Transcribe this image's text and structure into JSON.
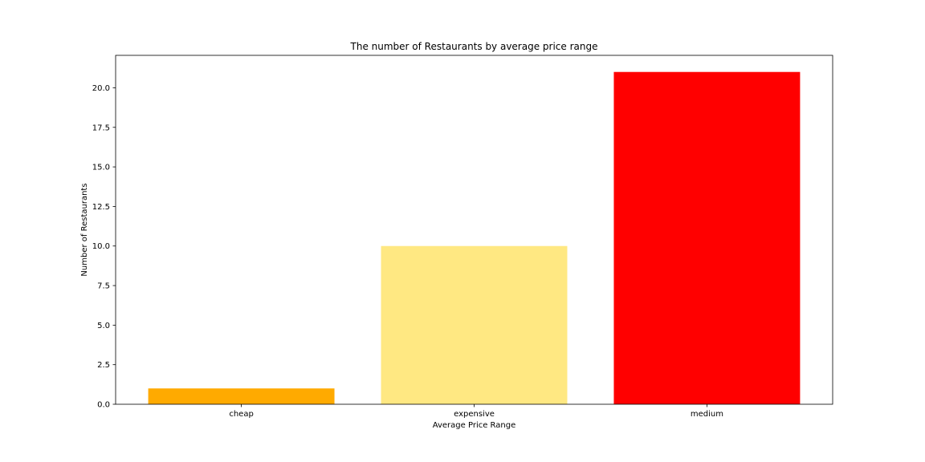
{
  "chart_data": {
    "type": "bar",
    "title": "The number of Restaurants by average price range",
    "xlabel": "Average Price Range",
    "ylabel": "Number of Restaurants",
    "categories": [
      "cheap",
      "expensive",
      "medium"
    ],
    "values": [
      1,
      10,
      21
    ],
    "colors": [
      "#ffaa00",
      "#ffe882",
      "#ff0000"
    ],
    "ylim": [
      0,
      22.05
    ],
    "yticks": [
      0,
      2.5,
      5,
      7.5,
      10,
      12.5,
      15,
      17.5,
      20
    ],
    "ytick_labels": [
      "0.0",
      "2.5",
      "5.0",
      "7.5",
      "10.0",
      "12.5",
      "15.0",
      "17.5",
      "20.0"
    ],
    "grid": false,
    "legend": "none"
  }
}
